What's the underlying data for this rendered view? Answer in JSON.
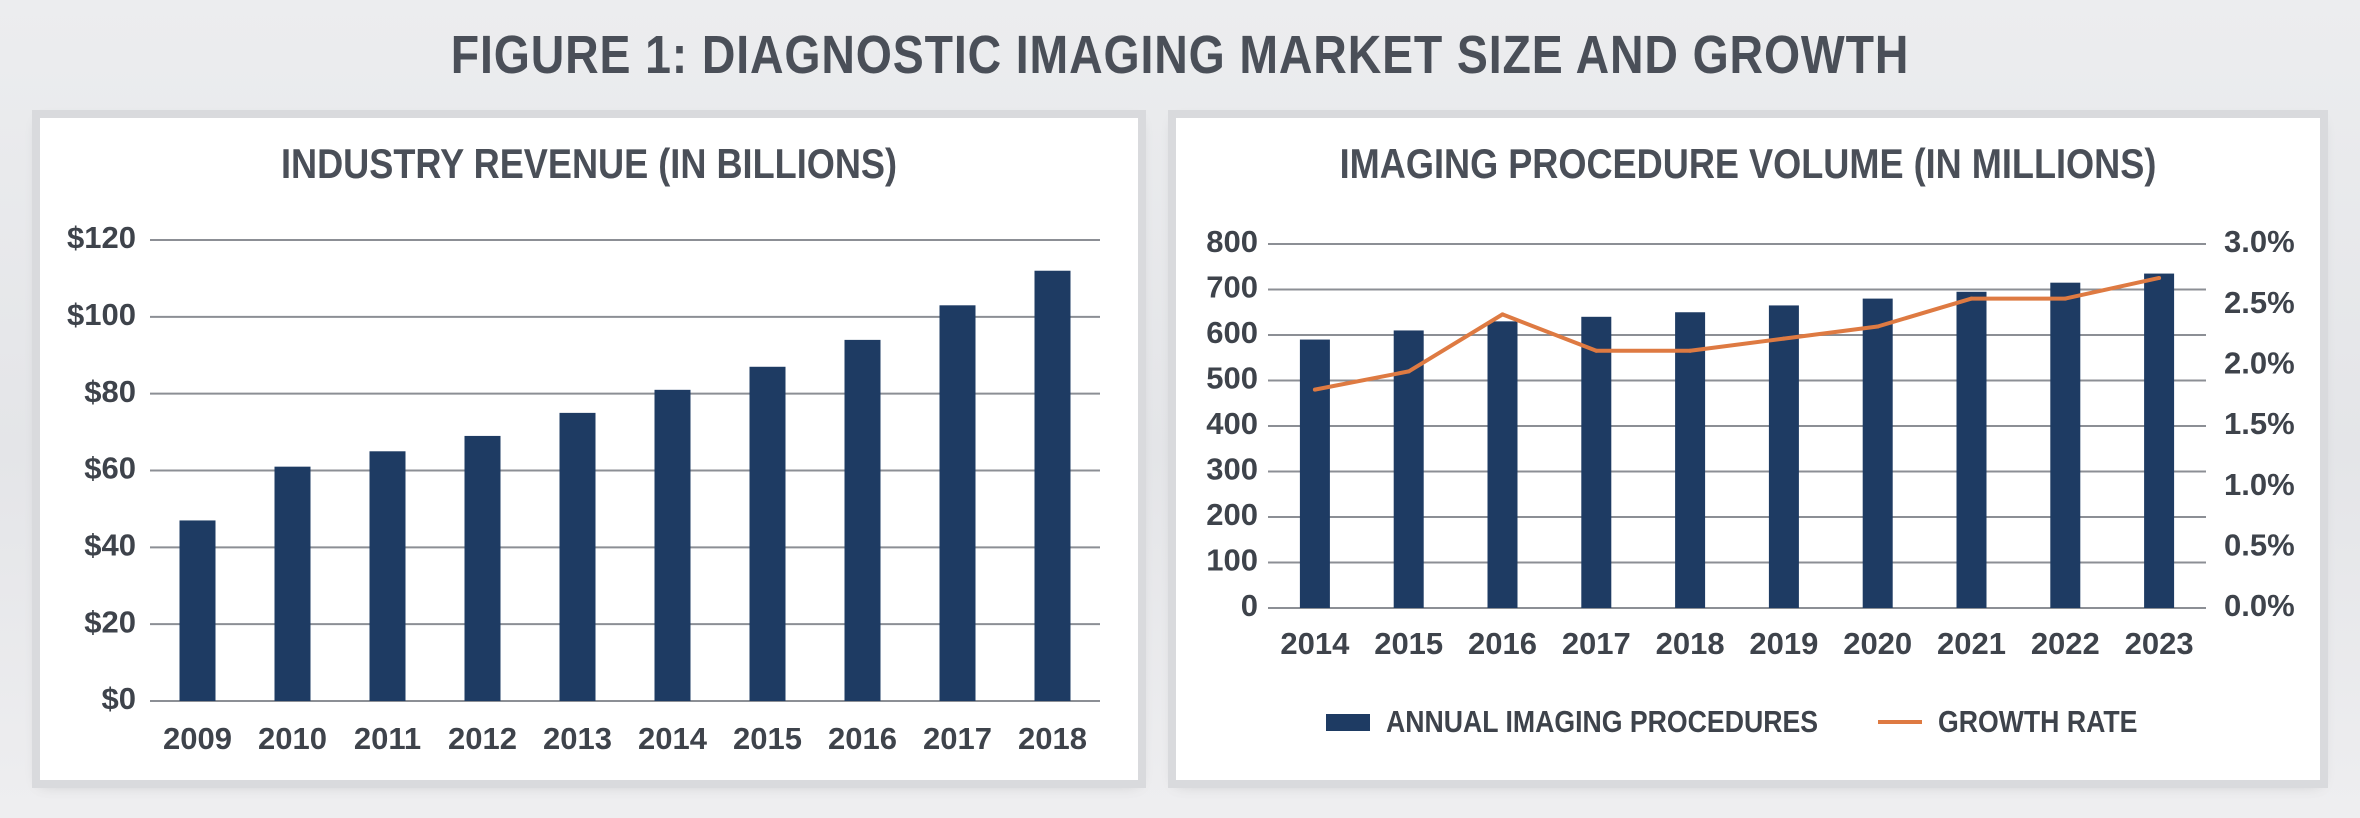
{
  "figure_title": "FIGURE 1: DIAGNOSTIC IMAGING MARKET SIZE AND GROWTH",
  "colors": {
    "bar": "#1e3b63",
    "line": "#de7a42",
    "grid": "#8c8f95",
    "text": "#3e434b"
  },
  "chart_data": [
    {
      "type": "bar",
      "title": "INDUSTRY REVENUE (IN BILLIONS)",
      "categories": [
        "2009",
        "2010",
        "2011",
        "2012",
        "2013",
        "2014",
        "2015",
        "2016",
        "2017",
        "2018"
      ],
      "values": [
        47,
        61,
        65,
        69,
        75,
        81,
        87,
        94,
        103,
        112
      ],
      "ylim": [
        0,
        120
      ],
      "yticks": [
        0,
        20,
        40,
        60,
        80,
        100,
        120
      ],
      "ytick_labels": [
        "$0",
        "$20",
        "$40",
        "$60",
        "$80",
        "$100",
        "$120"
      ],
      "grid": true,
      "xlabel": "",
      "ylabel": ""
    },
    {
      "type": "bar",
      "title": "IMAGING PROCEDURE VOLUME (IN MILLIONS)",
      "categories": [
        "2014",
        "2015",
        "2016",
        "2017",
        "2018",
        "2019",
        "2020",
        "2021",
        "2022",
        "2023"
      ],
      "series": [
        {
          "name": "ANNUAL IMAGING PROCEDURES",
          "type": "bar",
          "axis": "left",
          "values": [
            590,
            610,
            630,
            640,
            650,
            665,
            680,
            695,
            715,
            735
          ]
        },
        {
          "name": "GROWTH RATE",
          "type": "line",
          "axis": "right",
          "values": [
            1.8,
            1.95,
            2.42,
            2.12,
            2.12,
            2.22,
            2.32,
            2.55,
            2.55,
            2.72
          ]
        }
      ],
      "ylim": [
        0,
        800
      ],
      "yticks": [
        0,
        100,
        200,
        300,
        400,
        500,
        600,
        700,
        800
      ],
      "ytick_labels": [
        "0",
        "100",
        "200",
        "300",
        "400",
        "500",
        "600",
        "700",
        "800"
      ],
      "y2lim": [
        0,
        3.0
      ],
      "y2ticks": [
        0,
        0.5,
        1.0,
        1.5,
        2.0,
        2.5,
        3.0
      ],
      "y2tick_labels": [
        "0.0%",
        "0.5%",
        "1.0%",
        "1.5%",
        "2.0%",
        "2.5%",
        "3.0%"
      ],
      "grid": true,
      "legend_position": "bottom"
    }
  ]
}
